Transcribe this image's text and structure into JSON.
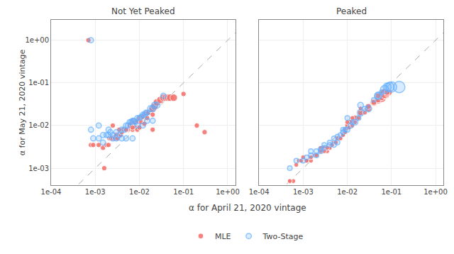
{
  "chart_data": [
    {
      "type": "scatter",
      "title": "Not Yet Peaked",
      "xlabel": "α for April 21, 2020 vintage",
      "ylabel": "α for May 21, 2020 vintage",
      "log": true,
      "grid": true,
      "legend": "bottom",
      "xlim": [
        0.0001,
        1.5
      ],
      "ylim": [
        0.0004,
        3.0
      ],
      "xticks": [
        {
          "value": 0.0001,
          "label": "1e-04"
        },
        {
          "value": 0.001,
          "label": "1e-03"
        },
        {
          "value": 0.01,
          "label": "1e-02"
        },
        {
          "value": 0.1,
          "label": "1e-01"
        },
        {
          "value": 1.0,
          "label": "1e+00"
        }
      ],
      "yticks": [
        {
          "value": 0.001,
          "label": "1e-03"
        },
        {
          "value": 0.01,
          "label": "1e-02"
        },
        {
          "value": 0.1,
          "label": "1e-01"
        },
        {
          "value": 1.0,
          "label": "1e+00"
        }
      ],
      "series": [
        {
          "name": "MLE",
          "color": "#F4736E",
          "x": [
            0.0007,
            0.0008,
            0.0009,
            0.0012,
            0.0015,
            0.0016,
            0.0018,
            0.002,
            0.0021,
            0.0023,
            0.0025,
            0.0028,
            0.003,
            0.0032,
            0.0035,
            0.0038,
            0.004,
            0.0042,
            0.0045,
            0.005,
            0.0055,
            0.006,
            0.0065,
            0.007,
            0.0075,
            0.008,
            0.009,
            0.01,
            0.011,
            0.012,
            0.013,
            0.014,
            0.015,
            0.016,
            0.018,
            0.02,
            0.022,
            0.025,
            0.03,
            0.035,
            0.04,
            0.045,
            0.05,
            0.06,
            0.0025,
            0.0035,
            0.005,
            0.007,
            0.008,
            0.009,
            0.011,
            0.013,
            0.02,
            0.005,
            0.007,
            0.01,
            0.015,
            0.02,
            0.1,
            0.2,
            0.3
          ],
          "values": [
            1.0,
            0.0035,
            0.0035,
            0.0035,
            0.003,
            0.001,
            0.0035,
            0.0035,
            0.005,
            0.005,
            0.005,
            0.005,
            0.006,
            0.005,
            0.006,
            0.006,
            0.007,
            0.008,
            0.008,
            0.008,
            0.008,
            0.01,
            0.011,
            0.013,
            0.012,
            0.012,
            0.013,
            0.015,
            0.016,
            0.016,
            0.018,
            0.019,
            0.02,
            0.02,
            0.023,
            0.025,
            0.028,
            0.035,
            0.04,
            0.045,
            0.045,
            0.045,
            0.045,
            0.045,
            0.01,
            0.008,
            0.008,
            0.008,
            0.009,
            0.008,
            0.012,
            0.011,
            0.008,
            0.008,
            0.009,
            0.009,
            0.015,
            0.018,
            0.055,
            0.01,
            0.007
          ],
          "sizes": [
            25,
            25,
            25,
            25,
            25,
            25,
            25,
            25,
            25,
            25,
            25,
            25,
            25,
            25,
            25,
            25,
            25,
            25,
            25,
            25,
            25,
            25,
            25,
            25,
            25,
            25,
            25,
            25,
            25,
            25,
            25,
            25,
            25,
            25,
            25,
            50,
            50,
            50,
            50,
            50,
            50,
            50,
            50,
            50,
            25,
            25,
            25,
            25,
            25,
            25,
            25,
            25,
            25,
            25,
            25,
            25,
            25,
            25,
            25,
            25,
            25
          ]
        },
        {
          "name": "Two-Stage",
          "color": "#61AEFF",
          "x": [
            0.0008,
            0.0009,
            0.0012,
            0.0015,
            0.0018,
            0.002,
            0.0022,
            0.0025,
            0.003,
            0.0035,
            0.004,
            0.0045,
            0.005,
            0.0055,
            0.006,
            0.0065,
            0.007,
            0.0075,
            0.008,
            0.009,
            0.01,
            0.011,
            0.012,
            0.013,
            0.014,
            0.015,
            0.018,
            0.02,
            0.022,
            0.025,
            0.035,
            0.0008,
            0.0012,
            0.002,
            0.003,
            0.004,
            0.005,
            0.007,
            0.009,
            0.012,
            0.015,
            0.02,
            0.0015,
            0.0025
          ],
          "values": [
            1.0,
            0.005,
            0.005,
            0.004,
            0.006,
            0.006,
            0.007,
            0.006,
            0.005,
            0.006,
            0.008,
            0.008,
            0.01,
            0.01,
            0.012,
            0.012,
            0.013,
            0.013,
            0.012,
            0.015,
            0.015,
            0.016,
            0.018,
            0.018,
            0.02,
            0.02,
            0.025,
            0.025,
            0.03,
            0.03,
            0.05,
            0.008,
            0.01,
            0.008,
            0.007,
            0.005,
            0.005,
            0.005,
            0.01,
            0.01,
            0.013,
            0.013,
            0.006,
            0.005
          ],
          "sizes": [
            25,
            25,
            25,
            25,
            25,
            25,
            25,
            25,
            25,
            25,
            25,
            25,
            25,
            25,
            25,
            25,
            25,
            25,
            25,
            25,
            25,
            25,
            25,
            25,
            25,
            25,
            35,
            35,
            35,
            35,
            25,
            25,
            25,
            25,
            25,
            25,
            25,
            25,
            25,
            25,
            25,
            25,
            25,
            25
          ]
        }
      ]
    },
    {
      "type": "scatter",
      "title": "Peaked",
      "log": true,
      "grid": true,
      "tick_labels": "x",
      "xlim": [
        0.0001,
        1.5
      ],
      "ylim": [
        0.0004,
        3.0
      ],
      "xticks": [
        {
          "value": 0.0001,
          "label": "1e-04"
        },
        {
          "value": 0.001,
          "label": "1e-03"
        },
        {
          "value": 0.01,
          "label": "1e-02"
        },
        {
          "value": 0.1,
          "label": "1e-01"
        },
        {
          "value": 1.0,
          "label": "1e+00"
        }
      ],
      "yticks": [
        {
          "value": 0.001,
          "label": "1e-03"
        },
        {
          "value": 0.01,
          "label": "1e-02"
        },
        {
          "value": 0.1,
          "label": "1e-01"
        },
        {
          "value": 1.0,
          "label": "1e+00"
        }
      ],
      "series": [
        {
          "name": "MLE",
          "color": "#F4736E",
          "x": [
            0.0005,
            0.0006,
            0.0007,
            0.0008,
            0.0009,
            0.001,
            0.0012,
            0.0015,
            0.0018,
            0.002,
            0.0025,
            0.003,
            0.0035,
            0.004,
            0.005,
            0.006,
            0.007,
            0.008,
            0.009,
            0.01,
            0.012,
            0.015,
            0.02,
            0.03,
            0.04,
            0.05,
            0.06,
            0.07,
            0.01,
            0.015,
            0.02,
            0.03,
            0.04,
            0.05,
            0.06,
            0.07,
            0.08,
            0.09,
            0.01,
            0.013,
            0.02,
            0.05,
            0.08,
            0.002,
            0.003,
            0.004,
            0.006,
            0.008,
            0.0012,
            0.0015,
            0.0025,
            0.0035,
            0.0045,
            0.0055,
            0.007,
            0.009,
            0.011,
            0.013,
            0.018,
            0.025,
            0.0005
          ],
          "values": [
            0.0005,
            0.0005,
            0.0012,
            0.0015,
            0.0015,
            0.0018,
            0.0015,
            0.0015,
            0.002,
            0.002,
            0.003,
            0.003,
            0.0025,
            0.003,
            0.004,
            0.005,
            0.005,
            0.006,
            0.008,
            0.01,
            0.012,
            0.015,
            0.02,
            0.025,
            0.035,
            0.04,
            0.045,
            0.055,
            0.01,
            0.012,
            0.02,
            0.028,
            0.035,
            0.04,
            0.045,
            0.05,
            0.055,
            0.06,
            0.012,
            0.015,
            0.025,
            0.05,
            0.06,
            0.002,
            0.0025,
            0.003,
            0.005,
            0.006,
            0.0015,
            0.0018,
            0.0025,
            0.003,
            0.0035,
            0.004,
            0.005,
            0.007,
            0.009,
            0.01,
            0.015,
            0.02,
            0.0005
          ],
          "sizes": [
            20,
            20,
            20,
            20,
            20,
            20,
            20,
            20,
            20,
            20,
            20,
            20,
            20,
            20,
            20,
            20,
            20,
            20,
            20,
            30,
            30,
            30,
            40,
            40,
            50,
            60,
            80,
            100,
            20,
            20,
            30,
            30,
            30,
            30,
            30,
            30,
            30,
            30,
            20,
            20,
            20,
            30,
            30,
            20,
            20,
            20,
            20,
            20,
            20,
            20,
            20,
            20,
            20,
            20,
            20,
            20,
            20,
            20,
            20,
            20,
            20
          ]
        },
        {
          "name": "Two-Stage",
          "color": "#61AEFF",
          "x": [
            0.0005,
            0.0007,
            0.001,
            0.0015,
            0.002,
            0.0025,
            0.003,
            0.004,
            0.005,
            0.006,
            0.007,
            0.008,
            0.01,
            0.012,
            0.015,
            0.02,
            0.03,
            0.05,
            0.07,
            0.09,
            0.1,
            0.15,
            0.0015,
            0.002,
            0.003,
            0.005,
            0.008,
            0.01,
            0.02,
            0.05,
            0.08,
            0.0012,
            0.0025,
            0.004,
            0.006,
            0.009,
            0.013,
            0.018,
            0.025,
            0.04,
            0.06
          ],
          "values": [
            0.001,
            0.0015,
            0.0015,
            0.002,
            0.002,
            0.0025,
            0.003,
            0.0035,
            0.0035,
            0.004,
            0.006,
            0.007,
            0.008,
            0.01,
            0.012,
            0.02,
            0.025,
            0.05,
            0.07,
            0.08,
            0.08,
            0.08,
            0.0025,
            0.0025,
            0.0035,
            0.005,
            0.008,
            0.015,
            0.03,
            0.05,
            0.08,
            0.0018,
            0.0028,
            0.004,
            0.0055,
            0.008,
            0.012,
            0.015,
            0.025,
            0.04,
            0.06
          ],
          "sizes": [
            20,
            20,
            20,
            20,
            20,
            20,
            20,
            20,
            20,
            20,
            20,
            20,
            25,
            25,
            30,
            40,
            40,
            50,
            60,
            80,
            100,
            120,
            20,
            20,
            20,
            20,
            20,
            20,
            30,
            40,
            60,
            20,
            20,
            20,
            20,
            20,
            20,
            20,
            20,
            20,
            20
          ]
        }
      ]
    }
  ]
}
